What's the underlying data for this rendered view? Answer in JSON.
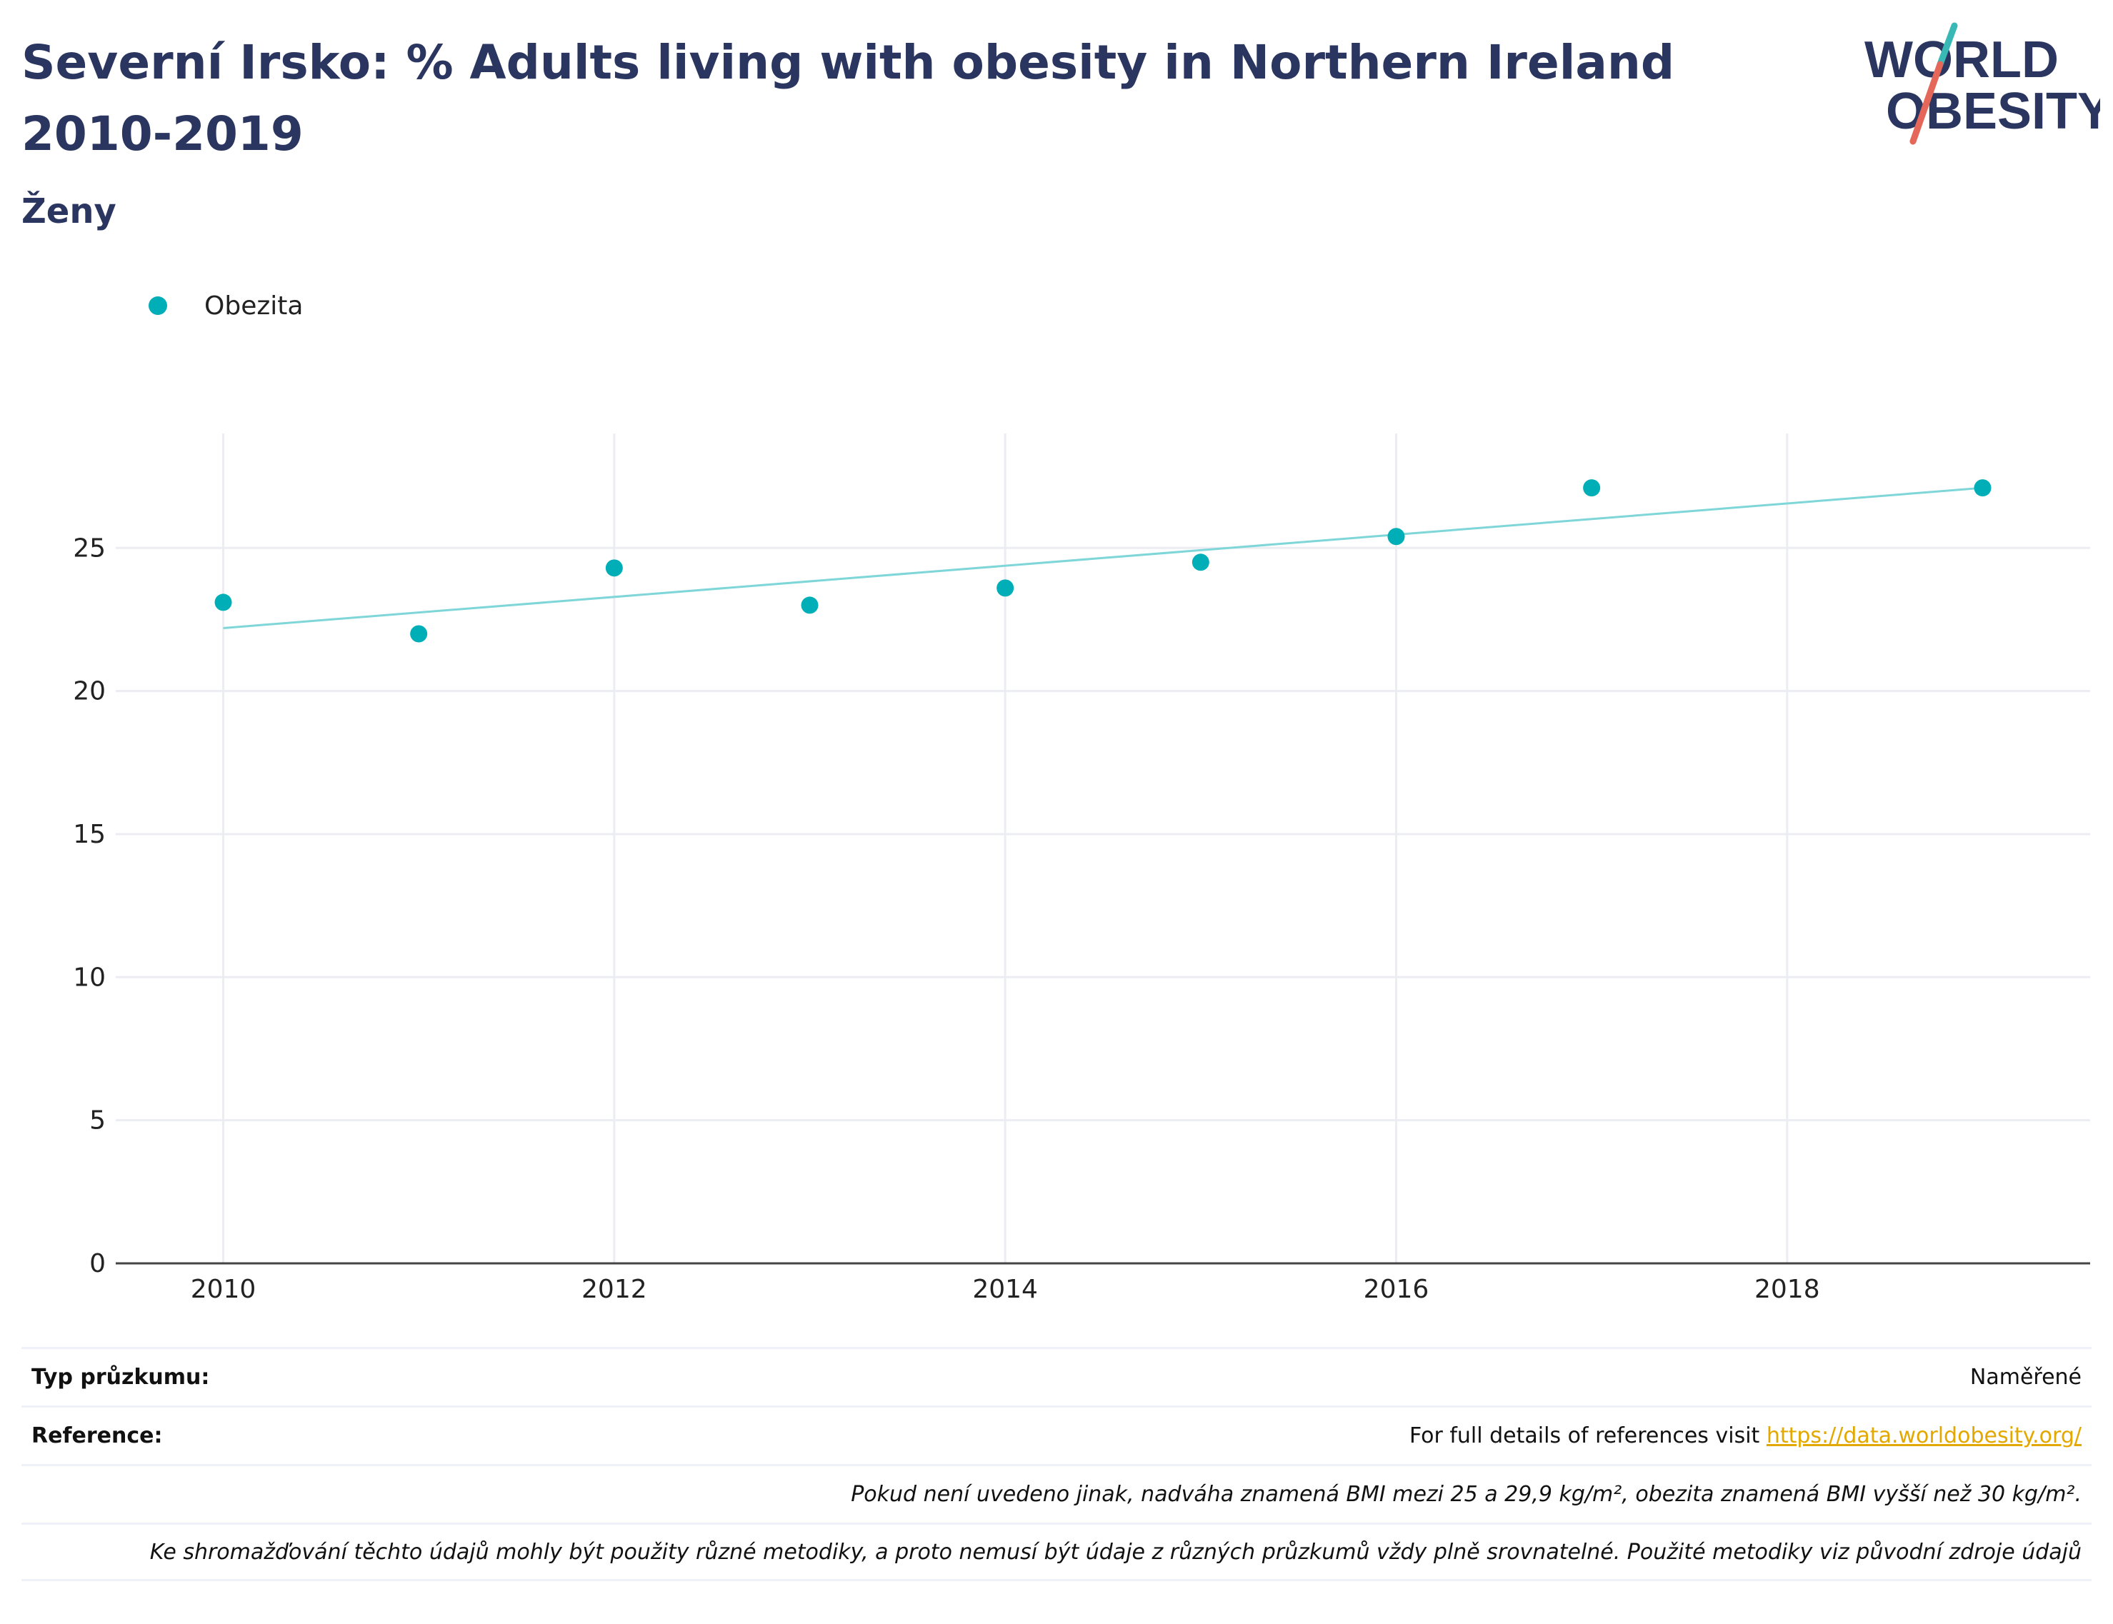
{
  "header": {
    "title": "Severní Irsko: % Adults living with obesity in Northern Ireland 2010-2019",
    "subtitle": "Ženy"
  },
  "logo": {
    "line1": "WORLD",
    "line2": "OBESITY",
    "colors": {
      "text": "#2a3560",
      "slash_top": "#38b9b6",
      "slash_bottom": "#e5675a"
    }
  },
  "legend": {
    "items": [
      {
        "label": "Obezita",
        "color": "#00aeb8"
      }
    ]
  },
  "colors": {
    "marker": "#00aeb8",
    "trendline": "#7fd6d9",
    "grid": "#ebedf2",
    "axis": "#444444",
    "link": "#e3a800"
  },
  "chart_data": {
    "type": "scatter",
    "x": [
      2010,
      2011,
      2012,
      2013,
      2014,
      2015,
      2016,
      2017,
      2019
    ],
    "series": [
      {
        "name": "Obezita",
        "values": [
          23.1,
          22.0,
          24.3,
          23.0,
          23.6,
          24.5,
          25.4,
          27.1,
          27.1
        ]
      }
    ],
    "trendline": {
      "x": [
        2010,
        2019
      ],
      "y": [
        22.2,
        27.1
      ]
    },
    "x_ticks": [
      "2010",
      "2012",
      "2014",
      "2016",
      "2018"
    ],
    "y_ticks": [
      "0",
      "5",
      "10",
      "15",
      "20",
      "25"
    ],
    "xlim": [
      2009.45,
      2019.55
    ],
    "ylim": [
      0,
      29
    ],
    "grid": true,
    "legend_position": "top-left"
  },
  "info": {
    "survey_type_label": "Typ průzkumu:",
    "survey_type_value": "Naměřené",
    "reference_label": "Reference:",
    "reference_text": "For full details of references visit ",
    "reference_link": "https://data.worldobesity.org/",
    "note_bmi": "Pokud není uvedeno jinak, nadváha znamená BMI mezi 25 a 29,9 kg/m², obezita znamená BMI vyšší než 30 kg/m².",
    "note_methods": "Ke shromažďování těchto údajů mohly být použity různé metodiky, a proto nemusí být údaje z různých průzkumů vždy plně srovnatelné. Použité metodiky viz původní zdroje údajů"
  }
}
